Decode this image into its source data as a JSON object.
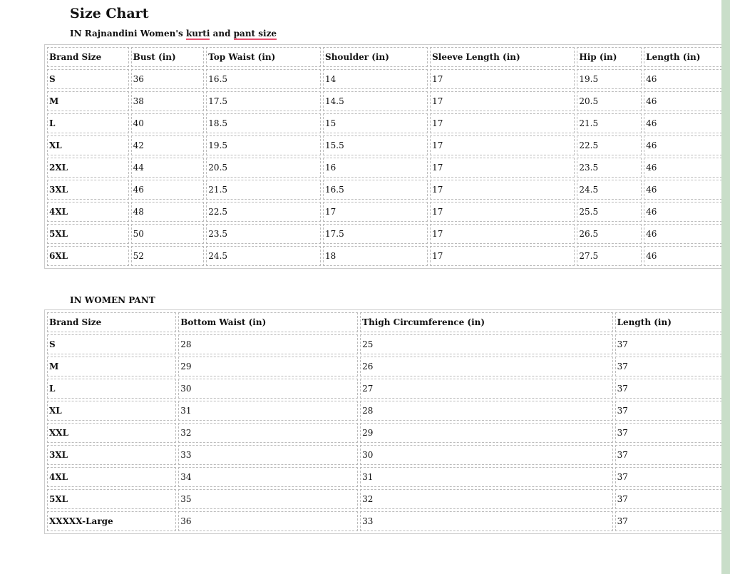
{
  "title": "Size Chart",
  "subtitle": {
    "pre": "IN Rajnandini Women's ",
    "w1": "kurti",
    "mid": " and ",
    "w2": "pant size"
  },
  "kurti": {
    "headers": [
      "Brand Size",
      "Bust (in)",
      "Top Waist (in)",
      "Shoulder (in)",
      "Sleeve Length (in)",
      "Hip (in)",
      "Length (in)"
    ],
    "rows": [
      [
        "S",
        "36",
        "16.5",
        "14",
        "17",
        "19.5",
        "46"
      ],
      [
        "M",
        "38",
        "17.5",
        "14.5",
        "17",
        "20.5",
        "46"
      ],
      [
        "L",
        "40",
        "18.5",
        "15",
        "17",
        "21.5",
        "46"
      ],
      [
        "XL",
        "42",
        "19.5",
        "15.5",
        "17",
        "22.5",
        "46"
      ],
      [
        "2XL",
        "44",
        "20.5",
        "16",
        "17",
        "23.5",
        "46"
      ],
      [
        "3XL",
        "46",
        "21.5",
        "16.5",
        "17",
        "24.5",
        "46"
      ],
      [
        "4XL",
        "48",
        "22.5",
        "17",
        "17",
        "25.5",
        "46"
      ],
      [
        "5XL",
        "50",
        "23.5",
        "17.5",
        "17",
        "26.5",
        "46"
      ],
      [
        "6XL",
        "52",
        "24.5",
        "18",
        "17",
        "27.5",
        "46"
      ]
    ]
  },
  "pant_title": "IN WOMEN PANT",
  "pant": {
    "headers": [
      "Brand Size",
      "Bottom Waist (in)",
      "Thigh Circumference (in)",
      "Length (in)"
    ],
    "rows": [
      [
        "S",
        "28",
        "25",
        "37"
      ],
      [
        "M",
        "29",
        "26",
        "37"
      ],
      [
        "L",
        "30",
        "27",
        "37"
      ],
      [
        "XL",
        "31",
        "28",
        "37"
      ],
      [
        "XXL",
        "32",
        "29",
        "37"
      ],
      [
        "3XL",
        "33",
        "30",
        "37"
      ],
      [
        "4XL",
        "34",
        "31",
        "37"
      ],
      [
        "5XL",
        "35",
        "32",
        "37"
      ],
      [
        "XXXXX-Large",
        "36",
        "33",
        "37"
      ]
    ]
  }
}
